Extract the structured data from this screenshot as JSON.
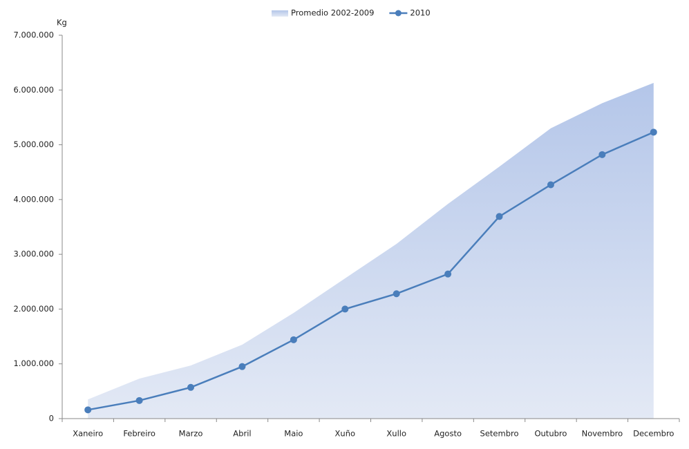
{
  "chart_data": {
    "type": "line",
    "y_label": "Kg",
    "categories": [
      "Xaneiro",
      "Febreiro",
      "Marzo",
      "Abril",
      "Maio",
      "Xuño",
      "Xullo",
      "Agosto",
      "Setembro",
      "Outubro",
      "Novembro",
      "Decembro"
    ],
    "series": [
      {
        "name": "Promedio 2002-2009",
        "kind": "area",
        "color": "#b4c6e9",
        "values": [
          350000,
          730000,
          970000,
          1350000,
          1930000,
          2560000,
          3190000,
          3920000,
          4600000,
          5300000,
          5760000,
          6130000
        ]
      },
      {
        "name": "2010",
        "kind": "line",
        "color": "#4a7ebb",
        "values": [
          160000,
          330000,
          570000,
          950000,
          1440000,
          2000000,
          2280000,
          2640000,
          3690000,
          4270000,
          4820000,
          5230000
        ]
      }
    ],
    "ylim": [
      0,
      7000000
    ],
    "yticks": [
      0,
      {
        "value": 1000000,
        "label": "1.000.000"
      },
      {
        "value": 2000000,
        "label": "2.000.000"
      },
      {
        "value": 3000000,
        "label": "3.000.000"
      },
      {
        "value": 4000000,
        "label": "4.000.000"
      },
      {
        "value": 5000000,
        "label": "5.000.000"
      },
      {
        "value": 6000000,
        "label": "6.000.000"
      },
      {
        "value": 7000000,
        "label": "7.000.000"
      }
    ],
    "grid": false,
    "legend": "top"
  }
}
